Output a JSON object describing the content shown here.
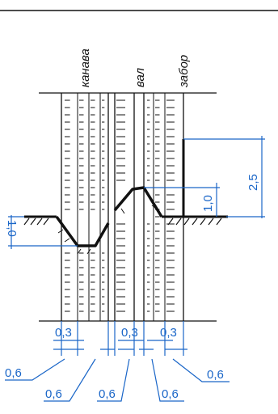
{
  "labels": {
    "ditch": "канава",
    "rampart": "вал",
    "fence": "забор"
  },
  "dimensions": {
    "ditch_depth": "1,0",
    "rampart_height": "1,0",
    "fence_height": "2,5",
    "strip_0_3_left": "0,3",
    "strip_0_3_mid": "0,3",
    "strip_0_3_right": "0,3",
    "strip_0_6_a": "0,6",
    "strip_0_6_b": "0,6",
    "strip_0_6_c": "0,6",
    "strip_0_6_d": "0,6",
    "strip_0_6_e": "0,6"
  },
  "colors": {
    "line": "#111111",
    "dimension": "#1a66c8",
    "background": "#ffffff"
  }
}
